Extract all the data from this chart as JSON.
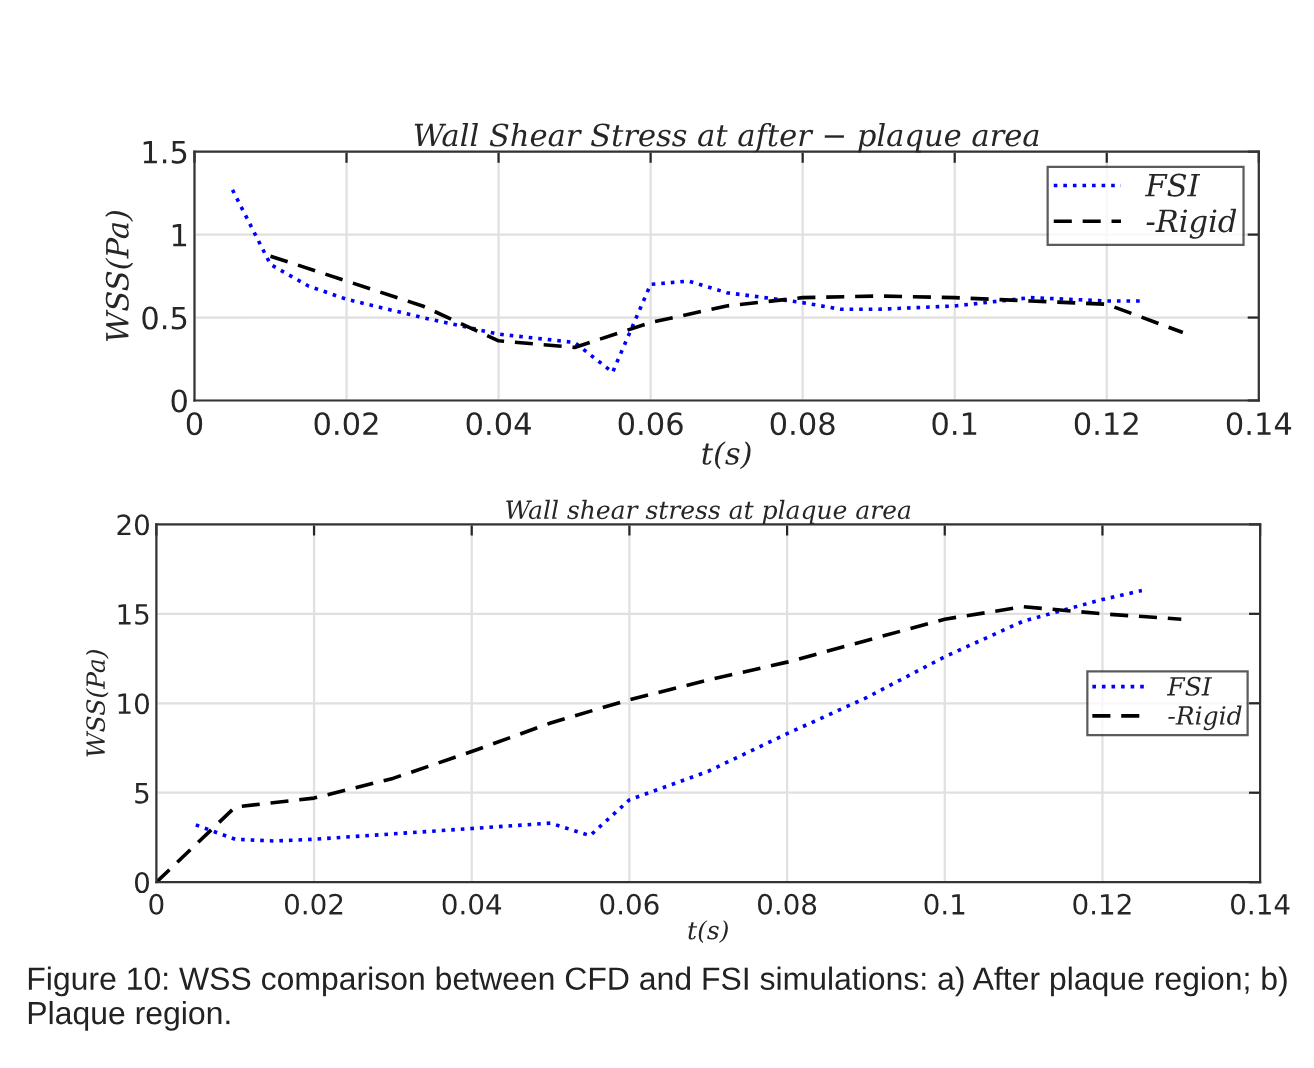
{
  "chart_data": [
    {
      "type": "line",
      "title": "Wall Shear Stress at after − plaque area",
      "xlabel": "t(s)",
      "ylabel": "WSS(Pa)",
      "xlim": [
        0,
        0.14
      ],
      "xticks": [
        0,
        0.02,
        0.04,
        0.06,
        0.08,
        0.1,
        0.12,
        0.14
      ],
      "ylim": [
        0,
        1.5
      ],
      "yticks": [
        0,
        0.5,
        1,
        1.5
      ],
      "grid": true,
      "legend": "top right",
      "series": [
        {
          "name": "FSI",
          "color": "#0000ff",
          "line_style": "dotted",
          "x": [
            0.005,
            0.01,
            0.015,
            0.02,
            0.03,
            0.04,
            0.05,
            0.055,
            0.06,
            0.065,
            0.07,
            0.08,
            0.085,
            0.09,
            0.1,
            0.11,
            0.12,
            0.125
          ],
          "values": [
            1.27,
            0.82,
            0.69,
            0.61,
            0.5,
            0.4,
            0.35,
            0.17,
            0.7,
            0.72,
            0.65,
            0.59,
            0.55,
            0.55,
            0.57,
            0.62,
            0.6,
            0.6
          ]
        },
        {
          "name": "-Rigid",
          "color": "#000000",
          "line_style": "dashed",
          "x": [
            0.01,
            0.02,
            0.03,
            0.04,
            0.05,
            0.06,
            0.07,
            0.08,
            0.09,
            0.1,
            0.11,
            0.12,
            0.13
          ],
          "values": [
            0.87,
            0.72,
            0.57,
            0.36,
            0.32,
            0.47,
            0.57,
            0.62,
            0.63,
            0.62,
            0.6,
            0.58,
            0.41
          ]
        }
      ]
    },
    {
      "type": "line",
      "title": "Wall shear stress at plaque area",
      "xlabel": "t(s)",
      "ylabel": "WSS(Pa)",
      "xlim": [
        0,
        0.14
      ],
      "xticks": [
        0,
        0.02,
        0.04,
        0.06,
        0.08,
        0.1,
        0.12,
        0.14
      ],
      "ylim": [
        0,
        20
      ],
      "yticks": [
        0,
        5,
        10,
        15,
        20
      ],
      "grid": true,
      "legend": "right",
      "annotations": [
        "Figure 10: WSS comparison between CFD and FSI simulations: a) After plaque region; b) Plaque region."
      ],
      "series": [
        {
          "name": "FSI",
          "color": "#0000ff",
          "line_style": "dotted",
          "x": [
            0.005,
            0.01,
            0.015,
            0.02,
            0.03,
            0.04,
            0.05,
            0.055,
            0.06,
            0.07,
            0.08,
            0.09,
            0.1,
            0.11,
            0.12,
            0.125
          ],
          "values": [
            3.2,
            2.4,
            2.3,
            2.4,
            2.7,
            3.0,
            3.3,
            2.6,
            4.6,
            6.2,
            8.3,
            10.3,
            12.6,
            14.6,
            15.8,
            16.3
          ]
        },
        {
          "name": "-Rigid",
          "color": "#000000",
          "line_style": "dashed",
          "x": [
            0,
            0.01,
            0.02,
            0.03,
            0.04,
            0.05,
            0.06,
            0.07,
            0.08,
            0.09,
            0.1,
            0.11,
            0.12,
            0.13
          ],
          "values": [
            0,
            4.2,
            4.7,
            5.8,
            7.3,
            8.9,
            10.2,
            11.3,
            12.3,
            13.5,
            14.7,
            15.4,
            15.0,
            14.7
          ]
        }
      ]
    }
  ]
}
